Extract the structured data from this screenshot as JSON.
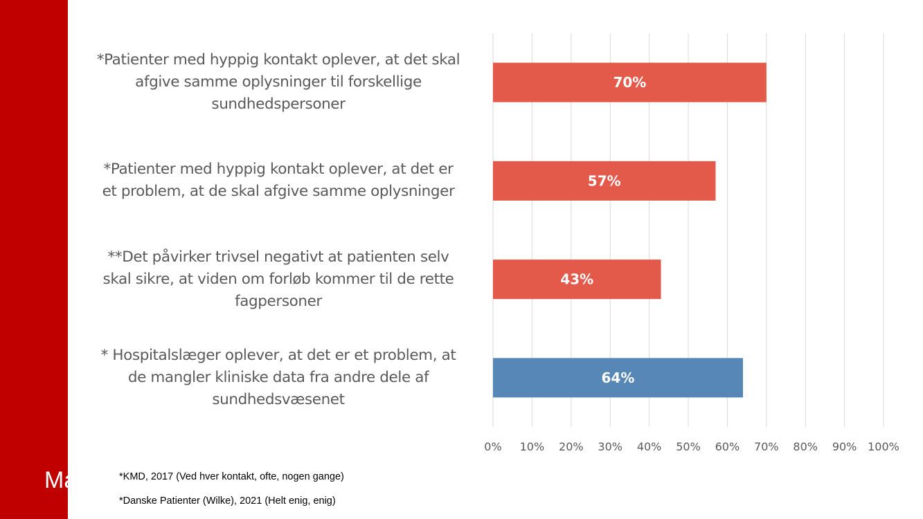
{
  "sidebar": {
    "color": "#c00000",
    "partial_text": "Ma"
  },
  "chart_data": {
    "type": "bar",
    "orientation": "horizontal",
    "title": "",
    "xlabel": "",
    "ylabel": "",
    "xlim": [
      0,
      100
    ],
    "x_unit": "%",
    "grid": "vertical",
    "legend": "none",
    "x_ticks": [
      "0%",
      "10%",
      "20%",
      "30%",
      "40%",
      "50%",
      "60%",
      "70%",
      "80%",
      "90%",
      "100%"
    ],
    "categories": [
      "*Patienter med hyppig kontakt oplever, at det skal afgive samme oplysninger til forskellige sundhedspersoner",
      "*Patienter med hyppig kontakt oplever, at det er et problem, at de skal afgive samme oplysninger",
      "**Det påvirker trivsel negativt at patienten selv skal sikre, at viden om forløb kommer til de rette fagpersoner",
      "* Hospitalslæger oplever, at det er et problem, at de mangler kliniske data fra andre dele af sundhedsvæsenet"
    ],
    "category_lines": [
      [
        "*Patienter med hyppig kontakt oplever, at det skal",
        "afgive samme oplysninger til forskellige",
        "sundhedspersoner"
      ],
      [
        "*Patienter med hyppig kontakt oplever, at det er",
        "et problem, at de skal afgive samme oplysninger"
      ],
      [
        "**Det påvirker trivsel negativt at patienten selv",
        "skal sikre, at viden om forløb kommer til de rette",
        "fagpersoner"
      ],
      [
        "* Hospitalslæger oplever, at det er et problem, at",
        "de mangler kliniske data fra andre dele af",
        "sundhedsvæsenet"
      ]
    ],
    "values": [
      70,
      57,
      43,
      64
    ],
    "data_labels": [
      "70%",
      "57%",
      "43%",
      "64%"
    ],
    "bar_colors": [
      "#e35a4b",
      "#e35a4b",
      "#e35a4b",
      "#5687b7"
    ],
    "gridline_color": "#d9d9d9",
    "tick_label_color": "#595959"
  },
  "footnotes": [
    "*KMD, 2017 (Ved hver kontakt, ofte, nogen gange)",
    "*Danske Patienter (Wilke), 2021 (Helt enig, enig)"
  ]
}
